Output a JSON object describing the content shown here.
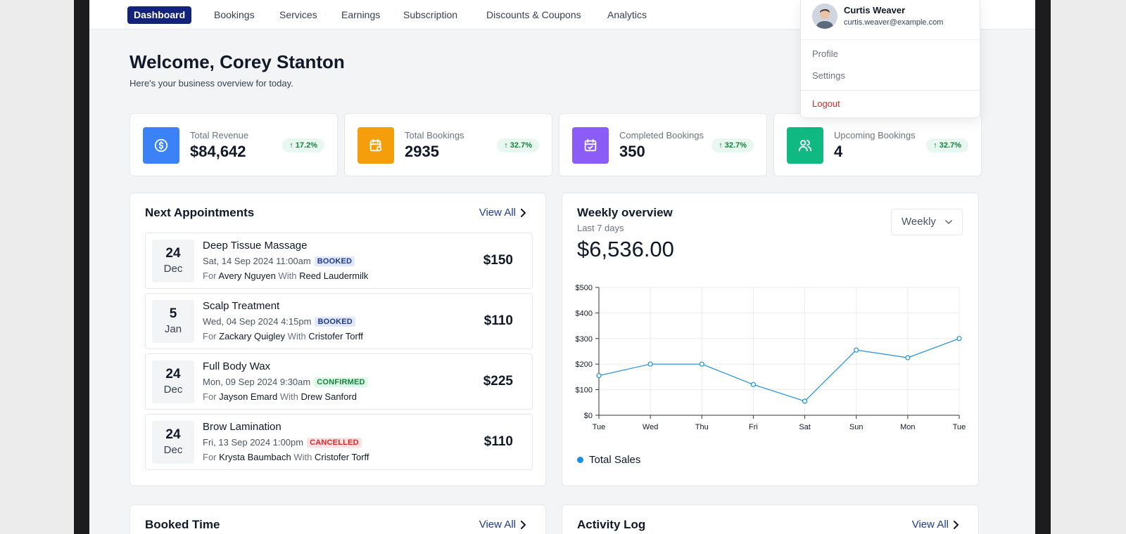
{
  "nav": {
    "items": [
      "Dashboard",
      "Bookings",
      "Services",
      "Earnings",
      "Subscription",
      "Discounts & Coupons",
      "Analytics"
    ],
    "active": "Dashboard"
  },
  "user_menu": {
    "name": "Curtis Weaver",
    "email": "curtis.weaver@example.com",
    "items": [
      "Profile",
      "Settings"
    ],
    "logout": "Logout"
  },
  "welcome": {
    "title": "Welcome, Corey Stanton",
    "subtitle": "Here's your business overview for today."
  },
  "stats": [
    {
      "label": "Total Revenue",
      "value": "$84,642",
      "change": "17.2%",
      "icon": "dollar-icon",
      "color": "#3b82f6"
    },
    {
      "label": "Total Bookings",
      "value": "2935",
      "change": "32.7%",
      "icon": "calendar-clock-icon",
      "color": "#f59e0b"
    },
    {
      "label": "Completed Bookings",
      "value": "350",
      "change": "32.7%",
      "icon": "calendar-check-icon",
      "color": "#8b5cf6"
    },
    {
      "label": "Upcoming Bookings",
      "value": "4",
      "change": "32.7%",
      "icon": "users-icon",
      "color": "#10b981"
    }
  ],
  "appointments": {
    "title": "Next Appointments",
    "view_all": "View All",
    "items": [
      {
        "day": "24",
        "month": "Dec",
        "service": "Deep Tissue Massage",
        "when": "Sat, 14 Sep 2024 11:00am",
        "status": "BOOKED",
        "for_label": "For",
        "client": "Avery Nguyen",
        "with_label": "With",
        "staff": "Reed Laudermilk",
        "price": "$150"
      },
      {
        "day": "5",
        "month": "Jan",
        "service": "Scalp Treatment",
        "when": "Wed, 04 Sep 2024 4:15pm",
        "status": "BOOKED",
        "for_label": "For",
        "client": "Zackary Quigley",
        "with_label": "With",
        "staff": "Cristofer Torff",
        "price": "$110"
      },
      {
        "day": "24",
        "month": "Dec",
        "service": "Full Body Wax",
        "when": "Mon, 09 Sep 2024 9:30am",
        "status": "CONFIRMED",
        "for_label": "For",
        "client": "Jayson Emard",
        "with_label": "With",
        "staff": "Drew Sanford",
        "price": "$225"
      },
      {
        "day": "24",
        "month": "Dec",
        "service": "Brow Lamination",
        "when": "Fri, 13 Sep 2024 1:00pm",
        "status": "CANCELLED",
        "for_label": "For",
        "client": "Krysta Baumbach",
        "with_label": "With",
        "staff": "Cristofer Torff",
        "price": "$110"
      }
    ]
  },
  "weekly": {
    "title": "Weekly overview",
    "subtitle": "Last 7 days",
    "total": "$6,536.00",
    "period": "Weekly",
    "legend": "Total Sales"
  },
  "chart_data": {
    "type": "line",
    "x": [
      "Tue",
      "Wed",
      "Thu",
      "Fri",
      "Sat",
      "Sun",
      "Mon",
      "Tue"
    ],
    "series": [
      {
        "name": "Total Sales",
        "values": [
          155,
          200,
          200,
          120,
          55,
          255,
          225,
          300
        ]
      }
    ],
    "ylim": [
      0,
      500
    ],
    "yticks": [
      "$0",
      "$100",
      "$200",
      "$300",
      "$400",
      "$500"
    ],
    "grid": true,
    "legend_position": "bottom-left",
    "line_color": "#1d8fe0"
  },
  "booked_time": {
    "title": "Booked Time",
    "view_all": "View All"
  },
  "activity_log": {
    "title": "Activity Log",
    "view_all": "View All"
  }
}
